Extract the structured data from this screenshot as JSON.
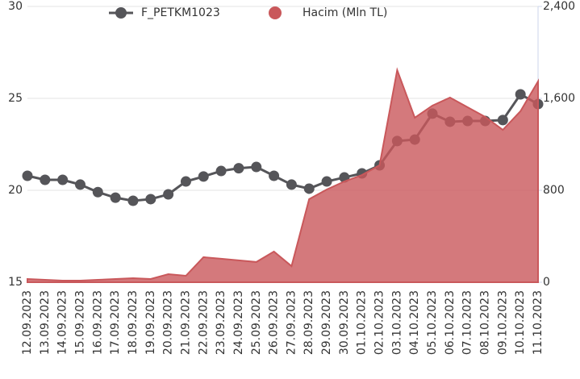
{
  "chart_data": {
    "type": "line",
    "categories": [
      "12.09.2023",
      "13.09.2023",
      "14.09.2023",
      "15.09.2023",
      "16.09.2023",
      "17.09.2023",
      "18.09.2023",
      "19.09.2023",
      "20.09.2023",
      "21.09.2023",
      "22.09.2023",
      "23.09.2023",
      "24.09.2023",
      "25.09.2023",
      "26.09.2023",
      "27.09.2023",
      "28.09.2023",
      "29.09.2023",
      "30.09.2023",
      "01.10.2023",
      "02.10.2023",
      "03.10.2023",
      "04.10.2023",
      "05.10.2023",
      "06.10.2023",
      "07.10.2023",
      "08.10.2023",
      "09.10.2023",
      "10.10.2023",
      "11.10.2023"
    ],
    "series": [
      {
        "name": "F_PETKM1023",
        "color": "#555559",
        "type": "line",
        "values": [
          20.79,
          20.57,
          20.57,
          20.31,
          19.9,
          19.6,
          19.43,
          19.52,
          19.78,
          20.48,
          20.75,
          21.05,
          21.2,
          21.27,
          20.79,
          20.31,
          20.09,
          20.48,
          20.7,
          20.92,
          21.36,
          22.68,
          22.76,
          24.17,
          23.73,
          23.77,
          23.77,
          23.82,
          25.22,
          24.69
        ]
      },
      {
        "name": "Hacim (Mln TL)",
        "color": "#c9585b",
        "type": "area",
        "axis": "y2",
        "values": [
          28,
          21,
          14,
          14,
          21,
          28,
          35,
          28,
          70,
          56,
          218,
          204,
          190,
          176,
          267,
          140,
          723,
          807,
          877,
          933,
          1018,
          1846,
          1432,
          1537,
          1607,
          1523,
          1439,
          1326,
          1488,
          1748
        ]
      }
    ],
    "ylim": [
      15,
      30
    ],
    "yticks": [
      15,
      20,
      25,
      30
    ],
    "y2lim": [
      0,
      2400
    ],
    "y2ticks": [
      0,
      800,
      {
        "value": 1600,
        "label": "1,600"
      },
      {
        "value": 2400,
        "label": "2,400"
      }
    ],
    "grid": true,
    "legend": "top"
  }
}
